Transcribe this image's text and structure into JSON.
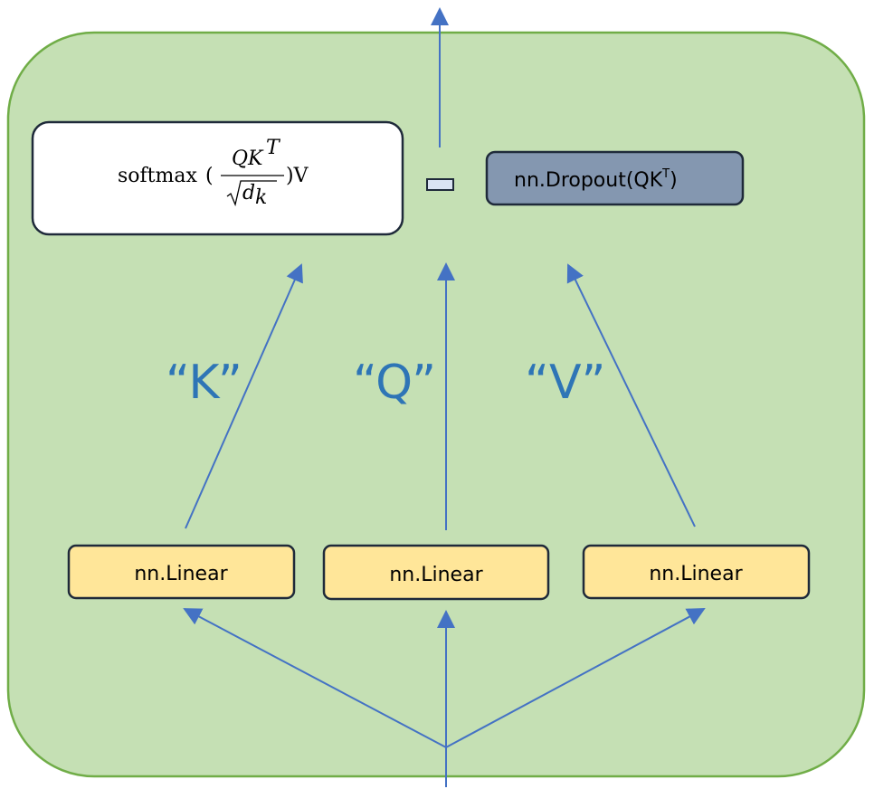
{
  "colors": {
    "container_fill": "#c5e0b4",
    "container_stroke": "#70ad47",
    "arrow": "#4472c4",
    "linear_fill": "#ffe699",
    "dropout_fill": "#8497b0",
    "box_stroke": "#1f2a3a",
    "qkv_text": "#2e75b6"
  },
  "attention": {
    "formula": {
      "fn": "softmax",
      "open": "(",
      "numerator": "QK",
      "numerator_sup": "T",
      "denominator": "d",
      "denominator_sub": "k",
      "close": ")V"
    }
  },
  "dropout": {
    "label": "nn.Dropout(QK",
    "label_sup": "T",
    "label_close": ")"
  },
  "labels": {
    "k": "“K”",
    "q": "“Q”",
    "v": "“V”"
  },
  "linears": [
    {
      "label": "nn.Linear"
    },
    {
      "label": "nn.Linear"
    },
    {
      "label": "nn.Linear"
    }
  ]
}
